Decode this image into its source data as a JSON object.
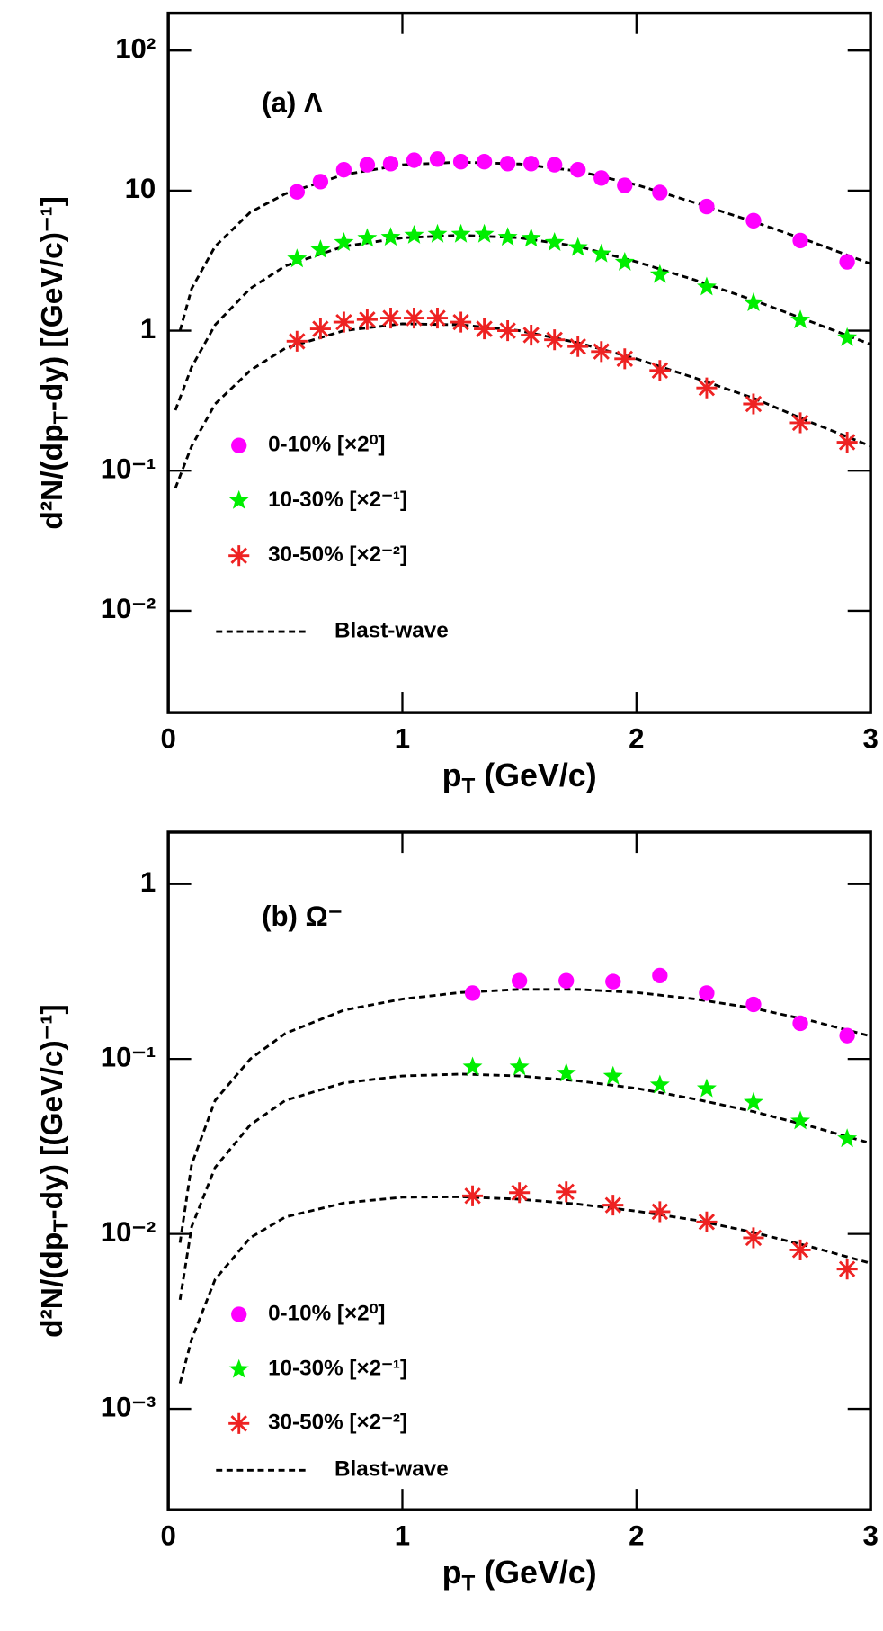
{
  "chart_data": [
    {
      "type": "scatter",
      "annotation": "(a) Λ",
      "x_label": {
        "text": "p",
        "sub": "T",
        "rest": "  (GeV/c)"
      },
      "y_label": {
        "text": "d²N/(dp",
        "sub": "T",
        "rest": "-dy)  [(GeV/c)⁻¹]"
      },
      "xlim": [
        0,
        3
      ],
      "xticks": [
        0,
        1,
        2,
        3
      ],
      "ylim": [
        0.001875,
        185
      ],
      "log_y": true,
      "yticks": [
        {
          "value": 0.01,
          "label": "10⁻²"
        },
        {
          "value": 0.1,
          "label": "10⁻¹"
        },
        1,
        {
          "value": 10,
          "label": "10"
        },
        {
          "value": 100,
          "label": "10²"
        }
      ],
      "series": [
        {
          "name": "0-10% [×2⁰]",
          "color": "#ff00ff",
          "marker": "circle",
          "x": [
            0.55,
            0.65,
            0.75,
            0.85,
            0.95,
            1.05,
            1.15,
            1.25,
            1.35,
            1.45,
            1.55,
            1.65,
            1.75,
            1.85,
            1.95,
            2.1,
            2.3,
            2.5,
            2.7,
            2.9
          ],
          "values": [
            9.8,
            11.6,
            14.1,
            15.3,
            15.6,
            16.5,
            16.8,
            16.1,
            16.1,
            15.6,
            15.6,
            15.3,
            14.1,
            12.3,
            10.9,
            9.7,
            7.7,
            6.1,
            4.4,
            3.1
          ]
        },
        {
          "name": "10-30% [×2⁻¹]",
          "color": "#00ee00",
          "marker": "star",
          "x": [
            0.55,
            0.65,
            0.75,
            0.85,
            0.95,
            1.05,
            1.15,
            1.25,
            1.35,
            1.45,
            1.55,
            1.65,
            1.75,
            1.85,
            1.95,
            2.1,
            2.3,
            2.5,
            2.7,
            2.9
          ],
          "values": [
            3.25,
            3.78,
            4.26,
            4.56,
            4.64,
            4.8,
            4.88,
            4.88,
            4.88,
            4.64,
            4.56,
            4.26,
            3.92,
            3.53,
            3.08,
            2.51,
            2.05,
            1.58,
            1.19,
            0.89
          ]
        },
        {
          "name": "30-50% [×2⁻²]",
          "color": "#ee2222",
          "marker": "asterisk",
          "x": [
            0.55,
            0.65,
            0.75,
            0.85,
            0.95,
            1.05,
            1.15,
            1.25,
            1.35,
            1.45,
            1.55,
            1.65,
            1.75,
            1.85,
            1.95,
            2.1,
            2.3,
            2.5,
            2.7,
            2.9
          ],
          "values": [
            0.84,
            1.03,
            1.15,
            1.2,
            1.23,
            1.23,
            1.23,
            1.15,
            1.03,
            1.0,
            0.93,
            0.86,
            0.77,
            0.71,
            0.63,
            0.52,
            0.39,
            0.3,
            0.22,
            0.16
          ]
        }
      ],
      "fit": {
        "name": "Blast-wave",
        "curves": [
          {
            "x": [
              0.05,
              0.1,
              0.2,
              0.35,
              0.5,
              0.75,
              1.0,
              1.25,
              1.5,
              1.75,
              2.0,
              2.25,
              2.5,
              2.75,
              3.0
            ],
            "values": [
              1.0,
              2.0,
              4.0,
              7.0,
              9.5,
              13,
              15.3,
              16,
              15.5,
              13.8,
              11,
              8.2,
              6,
              4.3,
              3.0
            ]
          },
          {
            "x": [
              0.03,
              0.1,
              0.2,
              0.35,
              0.5,
              0.75,
              1.0,
              1.25,
              1.5,
              1.75,
              2.0,
              2.25,
              2.5,
              2.75,
              3.0
            ],
            "values": [
              0.27,
              0.55,
              1.1,
              2.0,
              2.9,
              4.0,
              4.6,
              4.8,
              4.6,
              4.0,
              3.1,
              2.3,
              1.65,
              1.15,
              0.8
            ]
          },
          {
            "x": [
              0.03,
              0.1,
              0.2,
              0.35,
              0.5,
              0.75,
              1.0,
              1.25,
              1.5,
              1.75,
              2.0,
              2.25,
              2.5,
              2.75,
              3.0
            ],
            "values": [
              0.075,
              0.15,
              0.3,
              0.52,
              0.75,
              1.0,
              1.12,
              1.1,
              1.0,
              0.82,
              0.63,
              0.46,
              0.33,
              0.22,
              0.15
            ]
          }
        ]
      }
    },
    {
      "type": "scatter",
      "annotation": "(b) Ω⁻",
      "x_label": {
        "text": "p",
        "sub": "T",
        "rest": "  (GeV/c)"
      },
      "y_label": {
        "text": "d²N/(dp",
        "sub": "T",
        "rest": "-dy)  [(GeV/c)⁻¹]"
      },
      "xlim": [
        0,
        3
      ],
      "xticks": [
        0,
        1,
        2,
        3
      ],
      "ylim": [
        0.000265,
        1.98
      ],
      "log_y": true,
      "yticks": [
        {
          "value": 0.001,
          "label": "10⁻³"
        },
        {
          "value": 0.01,
          "label": "10⁻²"
        },
        {
          "value": 0.1,
          "label": "10⁻¹"
        },
        1
      ],
      "series": [
        {
          "name": "0-10% [×2⁰]",
          "color": "#ff00ff",
          "marker": "circle",
          "x": [
            1.3,
            1.5,
            1.7,
            1.9,
            2.1,
            2.3,
            2.5,
            2.7,
            2.9
          ],
          "values": [
            0.238,
            0.28,
            0.28,
            0.277,
            0.3,
            0.238,
            0.205,
            0.16,
            0.136
          ]
        },
        {
          "name": "10-30% [×2⁻¹]",
          "color": "#00ee00",
          "marker": "star",
          "x": [
            1.3,
            1.5,
            1.7,
            1.9,
            2.1,
            2.3,
            2.5,
            2.7,
            2.9
          ],
          "values": [
            0.09,
            0.09,
            0.083,
            0.0796,
            0.071,
            0.0676,
            0.0565,
            0.0442,
            0.035
          ]
        },
        {
          "name": "30-50% [×2⁻²]",
          "color": "#ee2222",
          "marker": "asterisk",
          "x": [
            1.3,
            1.5,
            1.7,
            1.9,
            2.1,
            2.3,
            2.5,
            2.7,
            2.9
          ],
          "values": [
            0.0165,
            0.0172,
            0.0174,
            0.0146,
            0.0134,
            0.0117,
            0.0095,
            0.0081,
            0.0063
          ]
        }
      ],
      "fit": {
        "name": "Blast-wave",
        "curves": [
          {
            "x": [
              0.05,
              0.1,
              0.2,
              0.35,
              0.5,
              0.75,
              1.0,
              1.25,
              1.5,
              1.75,
              2.0,
              2.25,
              2.5,
              2.75,
              3.0
            ],
            "values": [
              0.0089,
              0.025,
              0.058,
              0.1,
              0.14,
              0.19,
              0.22,
              0.24,
              0.25,
              0.25,
              0.24,
              0.22,
              0.195,
              0.165,
              0.135
            ]
          },
          {
            "x": [
              0.05,
              0.1,
              0.2,
              0.35,
              0.5,
              0.75,
              1.0,
              1.25,
              1.5,
              1.75,
              2.0,
              2.25,
              2.5,
              2.75,
              3.0
            ],
            "values": [
              0.0042,
              0.011,
              0.024,
              0.042,
              0.058,
              0.073,
              0.08,
              0.082,
              0.08,
              0.075,
              0.068,
              0.059,
              0.05,
              0.041,
              0.033
            ]
          },
          {
            "x": [
              0.05,
              0.1,
              0.2,
              0.35,
              0.5,
              0.75,
              1.0,
              1.25,
              1.5,
              1.75,
              2.0,
              2.25,
              2.5,
              2.75,
              3.0
            ],
            "values": [
              0.0014,
              0.0025,
              0.0055,
              0.0095,
              0.0125,
              0.015,
              0.0162,
              0.0163,
              0.0158,
              0.0148,
              0.0135,
              0.012,
              0.0102,
              0.0084,
              0.0068
            ]
          }
        ]
      }
    }
  ]
}
